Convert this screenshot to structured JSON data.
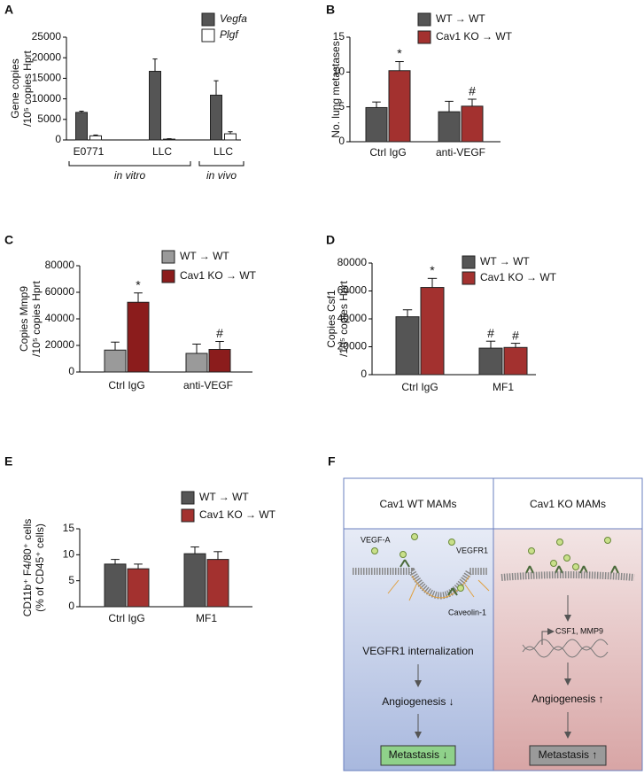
{
  "chart_data": [
    {
      "type": "bar",
      "panel": "A",
      "ylabel": [
        "Gene copies",
        "/10⁵ copies Hprt"
      ],
      "categories": [
        "E0771",
        "LLC",
        "LLC"
      ],
      "group_labels": [
        "in vitro",
        "in vivo"
      ],
      "series": [
        {
          "name": "Vegfa",
          "color": "#555555",
          "values": [
            6700,
            16700,
            10900
          ],
          "errors": [
            300,
            3000,
            3500
          ]
        },
        {
          "name": "Plgf",
          "color": "#ffffff",
          "values": [
            1000,
            200,
            1500
          ],
          "errors": [
            200,
            100,
            500
          ]
        }
      ],
      "ylim": [
        0,
        25000
      ],
      "yticks": [
        0,
        5000,
        10000,
        15000,
        20000,
        25000
      ]
    },
    {
      "type": "bar",
      "panel": "B",
      "ylabel": [
        "No. lung metastases"
      ],
      "categories": [
        "Ctrl IgG",
        "anti-VEGF"
      ],
      "series": [
        {
          "name": "WT → WT",
          "color": "#555555",
          "values": [
            4.9,
            4.3
          ],
          "errors": [
            0.8,
            1.5
          ],
          "markers": [
            null,
            null
          ]
        },
        {
          "name": "Cav1 KO → WT",
          "color": "#a3312f",
          "values": [
            10.2,
            5.1
          ],
          "errors": [
            1.3,
            1.0
          ],
          "markers": [
            "*",
            "#"
          ]
        }
      ],
      "ylim": [
        0,
        15
      ],
      "yticks": [
        0,
        5,
        10,
        15
      ]
    },
    {
      "type": "bar",
      "panel": "C",
      "ylabel": [
        "Copies Mmp9",
        "/10⁵ copies Hprt"
      ],
      "categories": [
        "Ctrl IgG",
        "anti-VEGF"
      ],
      "series": [
        {
          "name": "WT → WT",
          "color": "#9a9a9a",
          "values": [
            16500,
            14000
          ],
          "errors": [
            6000,
            7000
          ],
          "markers": [
            null,
            null
          ]
        },
        {
          "name": "Cav1 KO → WT",
          "color": "#8b1c1c",
          "values": [
            52500,
            17000
          ],
          "errors": [
            7000,
            6000
          ],
          "markers": [
            "*",
            "#"
          ]
        }
      ],
      "ylim": [
        0,
        80000
      ],
      "yticks": [
        0,
        20000,
        40000,
        60000,
        80000
      ]
    },
    {
      "type": "bar",
      "panel": "D",
      "ylabel": [
        "Copies Csf1",
        "/10⁵ copies Hprt"
      ],
      "categories": [
        "Ctrl IgG",
        "MF1"
      ],
      "series": [
        {
          "name": "WT → WT",
          "color": "#555555",
          "values": [
            41500,
            19000
          ],
          "errors": [
            5000,
            5000
          ],
          "markers": [
            null,
            "#"
          ]
        },
        {
          "name": "Cav1 KO → WT",
          "color": "#a3312f",
          "values": [
            62500,
            19500
          ],
          "errors": [
            6500,
            3000
          ],
          "markers": [
            "*",
            "#"
          ]
        }
      ],
      "ylim": [
        0,
        80000
      ],
      "yticks": [
        0,
        20000,
        40000,
        60000,
        80000
      ]
    },
    {
      "type": "bar",
      "panel": "E",
      "ylabel": [
        "CD11b⁺ F4/80⁺ cells",
        "(% of CD45⁺ cells)"
      ],
      "categories": [
        "Ctrl IgG",
        "MF1"
      ],
      "series": [
        {
          "name": "WT → WT",
          "color": "#555555",
          "values": [
            8.2,
            10.2
          ],
          "errors": [
            0.9,
            1.3
          ]
        },
        {
          "name": "Cav1 KO → WT",
          "color": "#a3312f",
          "values": [
            7.3,
            9.1
          ],
          "errors": [
            0.9,
            1.5
          ]
        }
      ],
      "ylim": [
        0,
        15
      ],
      "yticks": [
        0,
        5,
        10,
        15
      ]
    }
  ],
  "diagram": {
    "panel": "F",
    "left": {
      "header": "Cav1 WT MAMs",
      "ligand": "VEGF-A",
      "receptor": "VEGFR1",
      "caveolin": "Caveolin-1",
      "step": "VEGFR1 internalization",
      "effect": "Angiogenesis ↓",
      "outcome": "Metastasis ↓"
    },
    "right": {
      "header": "Cav1 KO MAMs",
      "genes": "CSF1, MMP9",
      "effect": "Angiogenesis ↑",
      "outcome": "Metastasis ↑"
    }
  }
}
